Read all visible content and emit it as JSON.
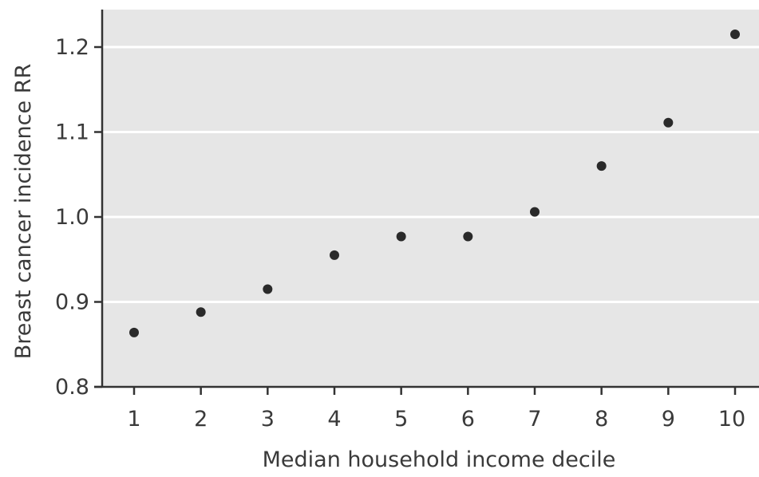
{
  "chart_data": {
    "type": "scatter",
    "title": "",
    "xlabel": "Median household income decile",
    "ylabel": "Breast cancer incidence RR",
    "x": [
      1,
      2,
      3,
      4,
      5,
      6,
      7,
      8,
      9,
      10
    ],
    "y": [
      0.864,
      0.888,
      0.915,
      0.955,
      0.977,
      0.977,
      1.006,
      1.06,
      1.111,
      1.215
    ],
    "xticks": [
      "1",
      "2",
      "3",
      "4",
      "5",
      "6",
      "7",
      "8",
      "9",
      "10"
    ],
    "yticks": [
      "0.8",
      "0.9",
      "1.0",
      "1.1",
      "1.2"
    ],
    "ytick_values": [
      0.8,
      0.9,
      1.0,
      1.1,
      1.2
    ],
    "xlim": [
      0.5,
      10.2
    ],
    "ylim": [
      0.8,
      1.245
    ],
    "grid": true,
    "legend": "none",
    "colors": {
      "panel": "#e6e6e6",
      "grid": "#ffffff",
      "point": "#2a2a2a",
      "axis": "#333333",
      "text": "#3a3a3a"
    }
  }
}
